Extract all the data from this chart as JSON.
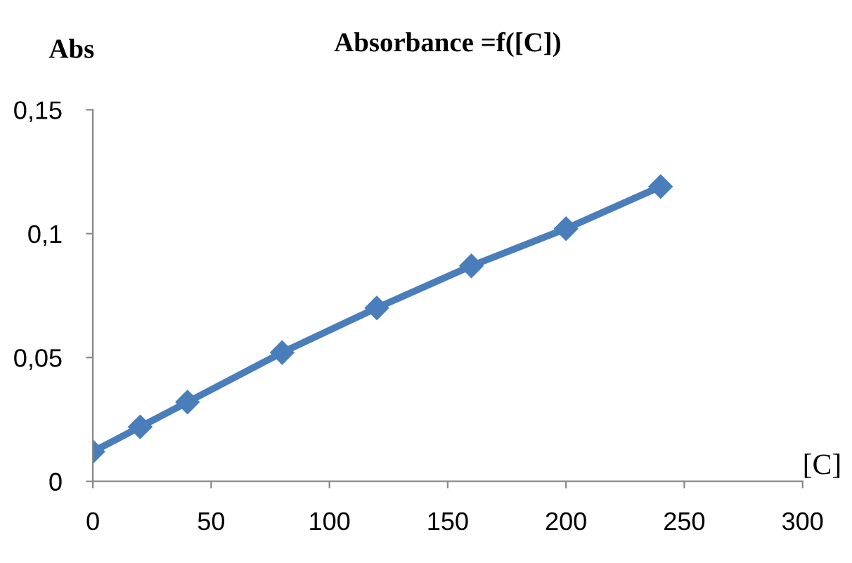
{
  "chart_data": {
    "type": "line",
    "title": "Absorbance =f([C])",
    "xlabel": "[C]",
    "ylabel": "Abs",
    "x": [
      0,
      20,
      40,
      80,
      120,
      160,
      200,
      240
    ],
    "series": [
      {
        "color": "#4a7ebb",
        "values": [
          0.012,
          0.022,
          0.032,
          0.052,
          0.07,
          0.087,
          0.102,
          0.119
        ]
      }
    ],
    "xlim": [
      0,
      300
    ],
    "xticks": [
      0,
      50,
      100,
      150,
      200,
      250,
      300
    ],
    "ylim": [
      0,
      0.15
    ],
    "yticks": [
      0,
      {
        "value": 0.05,
        "label": "0,05"
      },
      {
        "value": 0.1,
        "label": "0,1"
      },
      {
        "value": 0.15,
        "label": "0,15"
      }
    ],
    "marker": "diamond",
    "line_style": "solid",
    "grid": false,
    "legend": false
  }
}
